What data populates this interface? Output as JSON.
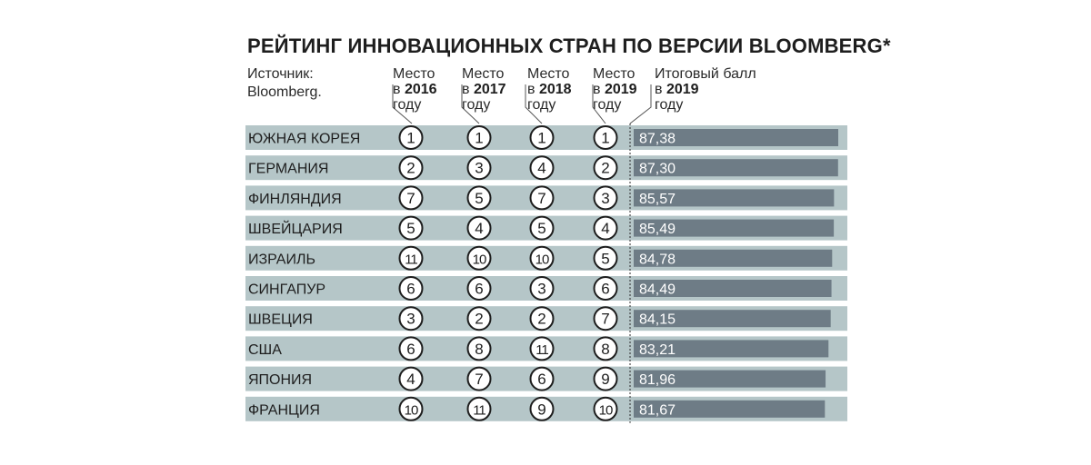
{
  "title": "РЕЙТИНГ ИННОВАЦИОННЫХ СТРАН ПО ВЕРСИИ BLOOMBERG*",
  "source": {
    "line1": "Источник:",
    "line2": "Bloomberg."
  },
  "columns": [
    {
      "line1": "Место",
      "line2a": "в ",
      "line2b": "2016",
      "line3": "году"
    },
    {
      "line1": "Место",
      "line2a": "в ",
      "line2b": "2017",
      "line3": "году"
    },
    {
      "line1": "Место",
      "line2a": "в ",
      "line2b": "2018",
      "line3": "году"
    },
    {
      "line1": "Место",
      "line2a": "в ",
      "line2b": "2019",
      "line3": "году"
    },
    {
      "line1": "Итоговый балл",
      "line2a": "в ",
      "line2b": "2019",
      "line3": "году"
    }
  ],
  "colors": {
    "row_bg": "#b5c6c8",
    "score_bar": "#6e7c86",
    "circle_fill": "#ffffff",
    "circle_stroke": "#1e1e1e",
    "text": "#1e1e1e"
  },
  "chart_data": {
    "type": "table",
    "title": "РЕЙТИНГ ИННОВАЦИОННЫХ СТРАН ПО ВЕРСИИ BLOOMBERG*",
    "columns": [
      "Место в 2016 году",
      "Место в 2017 году",
      "Место в 2018 году",
      "Место в 2019 году",
      "Итоговый балл в 2019 году"
    ],
    "rows": [
      {
        "country": "ЮЖНАЯ КОРЕЯ",
        "ranks": [
          1,
          1,
          1,
          1
        ],
        "score": "87,38",
        "score_value": 87.38
      },
      {
        "country": "ГЕРМАНИЯ",
        "ranks": [
          2,
          3,
          4,
          2
        ],
        "score": "87,30",
        "score_value": 87.3
      },
      {
        "country": "ФИНЛЯНДИЯ",
        "ranks": [
          7,
          5,
          7,
          3
        ],
        "score": "85,57",
        "score_value": 85.57
      },
      {
        "country": "ШВЕЙЦАРИЯ",
        "ranks": [
          5,
          4,
          5,
          4
        ],
        "score": "85,49",
        "score_value": 85.49
      },
      {
        "country": "ИЗРАИЛЬ",
        "ranks": [
          11,
          10,
          10,
          5
        ],
        "score": "84,78",
        "score_value": 84.78
      },
      {
        "country": "СИНГАПУР",
        "ranks": [
          6,
          6,
          3,
          6
        ],
        "score": "84,49",
        "score_value": 84.49
      },
      {
        "country": "ШВЕЦИЯ",
        "ranks": [
          3,
          2,
          2,
          7
        ],
        "score": "84,15",
        "score_value": 84.15
      },
      {
        "country": "США",
        "ranks": [
          6,
          8,
          11,
          8
        ],
        "score": "83,21",
        "score_value": 83.21
      },
      {
        "country": "ЯПОНИЯ",
        "ranks": [
          4,
          7,
          6,
          9
        ],
        "score": "81,96",
        "score_value": 81.96
      },
      {
        "country": "ФРАНЦИЯ",
        "ranks": [
          10,
          11,
          9,
          10
        ],
        "score": "81,67",
        "score_value": 81.67
      }
    ]
  }
}
